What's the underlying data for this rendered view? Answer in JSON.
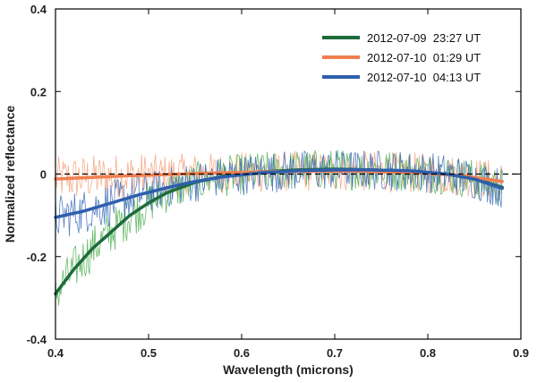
{
  "chart_data": {
    "type": "line",
    "title": "",
    "xlabel": "Wavelength (microns)",
    "ylabel": "Normalized reflectance",
    "xlim": [
      0.4,
      0.9
    ],
    "ylim": [
      -0.4,
      0.4
    ],
    "x_ticks": [
      "0.4",
      "0.5",
      "0.6",
      "0.7",
      "0.8",
      "0.9"
    ],
    "y_ticks": [
      "0.4",
      "0.2",
      "0",
      "-0.2",
      "-0.4"
    ],
    "reference_line": {
      "y": 0,
      "style": "dashed"
    },
    "legend_position": "top-right",
    "series": [
      {
        "name": "2012-07-09  23:27 UT",
        "color": "#1e6b3c",
        "noise_color": "#4caf50",
        "fit_x": [
          0.4,
          0.42,
          0.44,
          0.46,
          0.48,
          0.5,
          0.52,
          0.55,
          0.58,
          0.62,
          0.66,
          0.7,
          0.74,
          0.78,
          0.82,
          0.85,
          0.88
        ],
        "fit_y": [
          -0.29,
          -0.23,
          -0.18,
          -0.14,
          -0.1,
          -0.07,
          -0.045,
          -0.02,
          -0.005,
          0.005,
          0.01,
          0.012,
          0.01,
          0.007,
          0.0,
          -0.012,
          -0.032
        ],
        "noise_amplitude": 0.05
      },
      {
        "name": "2012-07-10  01:29 UT",
        "color": "#f07f50",
        "noise_color": "#f4a07a",
        "fit_x": [
          0.4,
          0.44,
          0.48,
          0.52,
          0.56,
          0.6,
          0.64,
          0.68,
          0.72,
          0.76,
          0.8,
          0.84,
          0.88
        ],
        "fit_y": [
          -0.012,
          -0.008,
          -0.004,
          -0.001,
          0.002,
          0.004,
          0.006,
          0.007,
          0.007,
          0.005,
          0.002,
          -0.005,
          -0.018
        ],
        "noise_amplitude": 0.05
      },
      {
        "name": "2012-07-10  04:13 UT",
        "color": "#2e5fad",
        "noise_color": "#3a68b8",
        "fit_x": [
          0.4,
          0.43,
          0.46,
          0.49,
          0.52,
          0.55,
          0.58,
          0.62,
          0.66,
          0.7,
          0.74,
          0.78,
          0.82,
          0.85,
          0.88
        ],
        "fit_y": [
          -0.105,
          -0.09,
          -0.07,
          -0.05,
          -0.033,
          -0.018,
          -0.007,
          0.003,
          0.008,
          0.01,
          0.01,
          0.008,
          0.0,
          -0.012,
          -0.035
        ],
        "noise_amplitude": 0.05
      }
    ]
  }
}
